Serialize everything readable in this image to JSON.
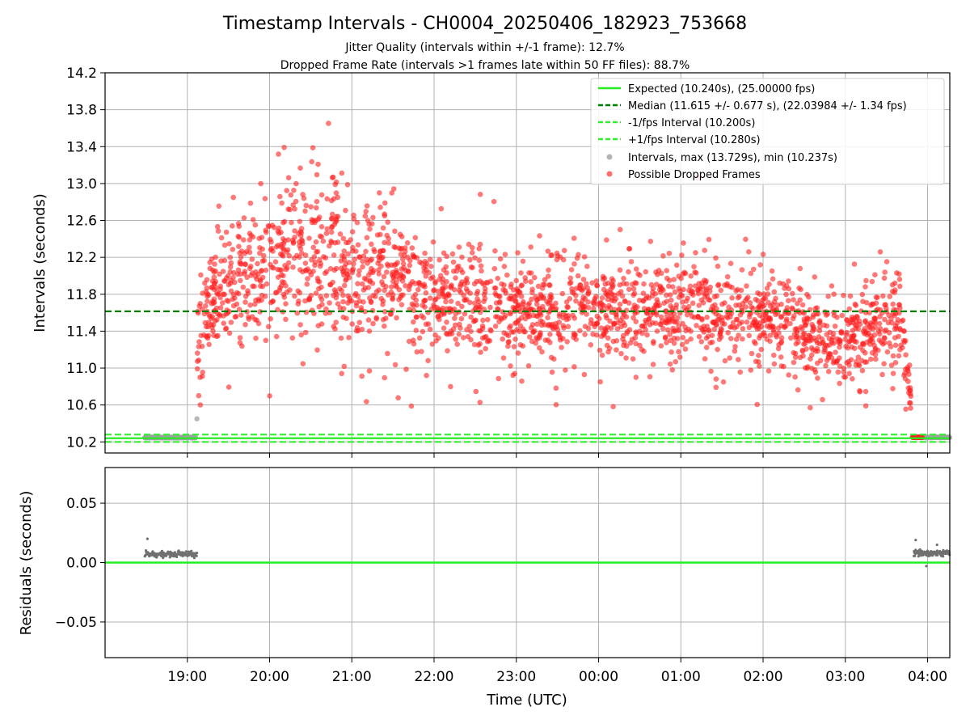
{
  "title": "Timestamp Intervals - CH0004_20250406_182923_753668",
  "subtitle_1": "Jitter Quality (intervals within +/-1 frame): 12.7%",
  "subtitle_2": "Dropped Frame Rate (intervals >1 frames late within 50 FF files): 88.7%",
  "colors": {
    "expected": "#22ee22",
    "median": "#008000",
    "interval": "#33ee33",
    "intervals_gray": "#a0a0a0",
    "dropped": "#ff2020",
    "residual_points": "#707070",
    "grid": "#b0b0b0"
  },
  "chart_data": [
    {
      "type": "scatter",
      "id": "intervals",
      "ylabel": "Intervals (seconds)",
      "xlim_hours": [
        18.0,
        28.27
      ],
      "ylim": [
        10.08,
        14.2
      ],
      "yticks": [
        10.2,
        10.6,
        11.0,
        11.4,
        11.8,
        12.2,
        12.6,
        13.0,
        13.4,
        13.8,
        14.2
      ],
      "ytick_labels": [
        "10.2",
        "10.6",
        "11.0",
        "11.4",
        "11.8",
        "12.2",
        "12.6",
        "13.0",
        "13.4",
        "13.8",
        "14.2"
      ],
      "grid": true,
      "legend_position": "upper-right",
      "reference_lines": [
        {
          "key": "expected",
          "label": "Expected (10.240s), (25.00000 fps)",
          "value": 10.24,
          "style": "solid",
          "color": "#22ee22"
        },
        {
          "key": "median",
          "label": "Median (11.615 +/- 0.677 s), (22.03984 +/- 1.34 fps)",
          "value": 11.615,
          "style": "dashed",
          "color": "#008000"
        },
        {
          "key": "minus",
          "label": "-1/fps Interval (10.200s)",
          "value": 10.2,
          "style": "dashed",
          "color": "#33ee33"
        },
        {
          "key": "plus",
          "label": "+1/fps Interval (10.280s)",
          "value": 10.28,
          "style": "dashed",
          "color": "#33ee33"
        }
      ],
      "series": [
        {
          "name": "Intervals, max (13.729s), min (10.237s)",
          "color": "#a0a0a0",
          "segments": [
            {
              "x_start": "18:29",
              "x_end": "19:06",
              "y": 10.247,
              "count": 220
            },
            {
              "x_start": "19:06",
              "x_end": "19:08",
              "y": 10.45,
              "count": 1
            },
            {
              "x_start": "03:50",
              "x_end": "04:16",
              "y": 10.249,
              "count": 150
            }
          ],
          "max": 13.729,
          "min": 10.237
        },
        {
          "name": "Possible Dropped Frames",
          "color": "#ff2020",
          "envelope": [
            {
              "time": "19:07",
              "median": 11.1,
              "spread": 0.28
            },
            {
              "time": "19:15",
              "median": 11.65,
              "spread": 0.32
            },
            {
              "time": "19:30",
              "median": 11.85,
              "spread": 0.35
            },
            {
              "time": "19:45",
              "median": 12.0,
              "spread": 0.38
            },
            {
              "time": "20:00",
              "median": 12.05,
              "spread": 0.4
            },
            {
              "time": "20:15",
              "median": 12.3,
              "spread": 0.4
            },
            {
              "time": "20:30",
              "median": 12.2,
              "spread": 0.4
            },
            {
              "time": "20:45",
              "median": 12.25,
              "spread": 0.42
            },
            {
              "time": "21:00",
              "median": 12.0,
              "spread": 0.35
            },
            {
              "time": "21:15",
              "median": 11.95,
              "spread": 0.38
            },
            {
              "time": "21:30",
              "median": 12.05,
              "spread": 0.38
            },
            {
              "time": "21:45",
              "median": 11.85,
              "spread": 0.32
            },
            {
              "time": "22:00",
              "median": 11.75,
              "spread": 0.28
            },
            {
              "time": "22:30",
              "median": 11.72,
              "spread": 0.27
            },
            {
              "time": "23:00",
              "median": 11.65,
              "spread": 0.26
            },
            {
              "time": "23:30",
              "median": 11.6,
              "spread": 0.25
            },
            {
              "time": "00:00",
              "median": 11.6,
              "spread": 0.25
            },
            {
              "time": "00:30",
              "median": 11.62,
              "spread": 0.25
            },
            {
              "time": "01:00",
              "median": 11.65,
              "spread": 0.25
            },
            {
              "time": "01:30",
              "median": 11.62,
              "spread": 0.25
            },
            {
              "time": "02:00",
              "median": 11.6,
              "spread": 0.27
            },
            {
              "time": "02:30",
              "median": 11.4,
              "spread": 0.27
            },
            {
              "time": "02:50",
              "median": 11.25,
              "spread": 0.22
            },
            {
              "time": "03:10",
              "median": 11.3,
              "spread": 0.22
            },
            {
              "time": "03:30",
              "median": 11.5,
              "spread": 0.25
            },
            {
              "time": "03:40",
              "median": 11.45,
              "spread": 0.25
            },
            {
              "time": "03:48",
              "median": 10.65,
              "spread": 0.12
            }
          ],
          "point_count": 2300,
          "late_cluster": {
            "x_start": "03:49",
            "x_end": "03:56",
            "y": 10.25
          }
        }
      ]
    },
    {
      "type": "scatter",
      "id": "residuals",
      "xlabel": "Time (UTC)",
      "ylabel": "Residuals (seconds)",
      "ylim": [
        -0.08,
        0.08
      ],
      "yticks": [
        -0.05,
        0.0,
        0.05
      ],
      "ytick_labels": [
        "−0.05",
        "0.00",
        "0.05"
      ],
      "xticks": [
        "19:00",
        "20:00",
        "21:00",
        "22:00",
        "23:00",
        "00:00",
        "01:00",
        "02:00",
        "03:00",
        "04:00"
      ],
      "grid": true,
      "zero_line_color": "#22ee22",
      "series": [
        {
          "name": "Residuals",
          "color": "#707070",
          "segments": [
            {
              "x_start": "18:29",
              "x_end": "19:07",
              "y": 0.007,
              "outliers": [
                0.02,
                0.004,
                0.01
              ]
            },
            {
              "x_start": "03:50",
              "x_end": "04:16",
              "y": 0.008,
              "outliers": [
                0.019,
                -0.003,
                0.015
              ]
            }
          ]
        }
      ]
    }
  ]
}
